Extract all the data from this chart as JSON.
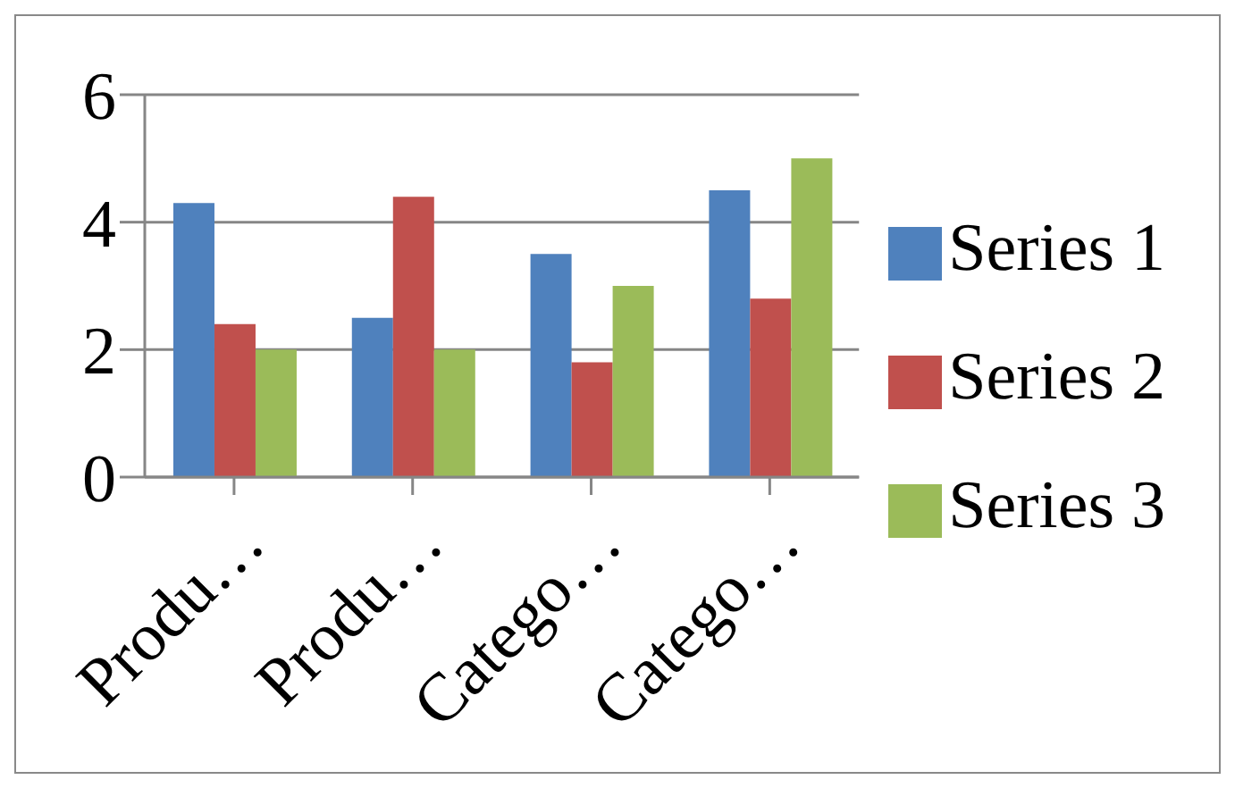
{
  "chart_data": {
    "type": "bar",
    "categories": [
      "Produ…",
      "Produ…",
      "Catego…",
      "Catego…"
    ],
    "series": [
      {
        "name": "Series 1",
        "color": "#4f81bd",
        "values": [
          4.3,
          2.5,
          3.5,
          4.5
        ]
      },
      {
        "name": "Series 2",
        "color": "#c0504d",
        "values": [
          2.4,
          4.4,
          1.8,
          2.8
        ]
      },
      {
        "name": "Series 3",
        "color": "#9bbb59",
        "values": [
          2,
          2,
          3,
          5
        ]
      }
    ],
    "ylim": [
      0,
      6
    ],
    "yticks": [
      0,
      2,
      4,
      6
    ],
    "grid": "y",
    "legend": "right"
  }
}
